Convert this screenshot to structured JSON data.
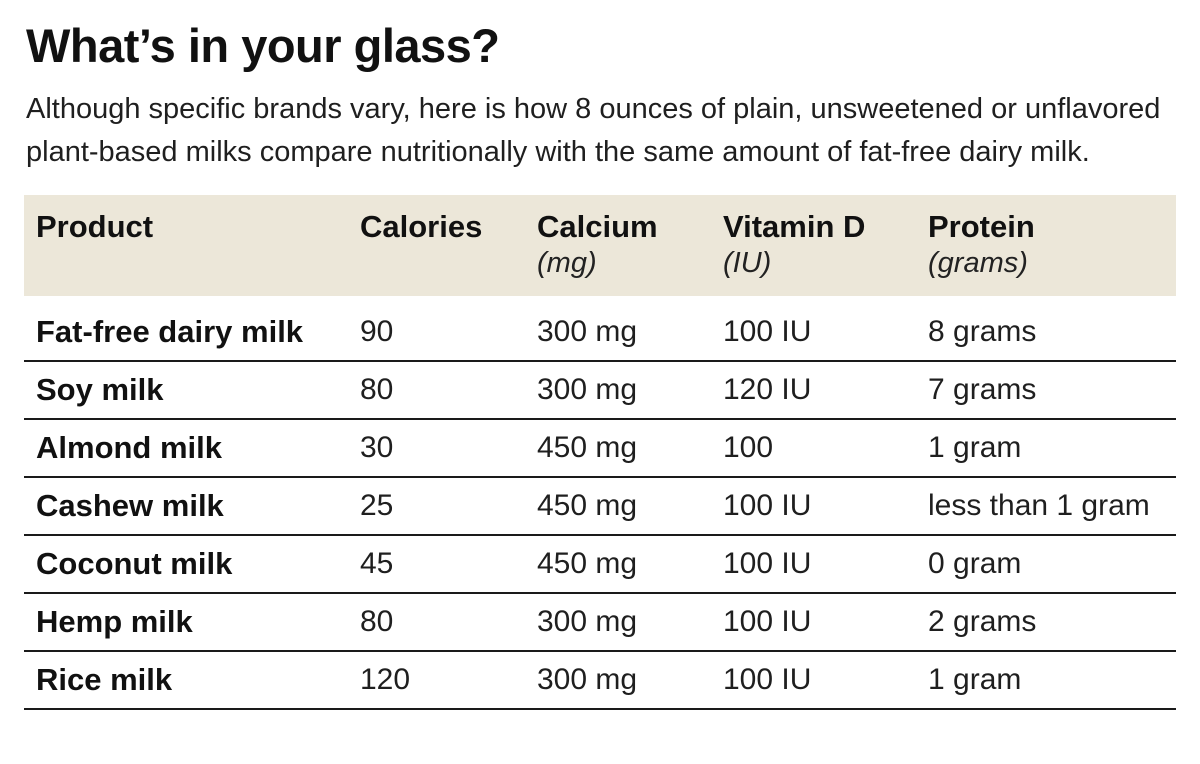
{
  "title": "What’s in your glass?",
  "intro": "Although specific brands vary, here is how 8 ounces of plain, unsweetened or unflavored plant-based milks compare nutritionally with the same amount of fat-free dairy milk.",
  "colors": {
    "header_background": "#ece7d9",
    "text": "#1a1a1a",
    "row_divider": "#1a1a1a"
  },
  "table": {
    "columns": [
      {
        "label": "Product",
        "unit": ""
      },
      {
        "label": "Calories",
        "unit": ""
      },
      {
        "label": "Calcium",
        "unit": "(mg)"
      },
      {
        "label": "Vitamin D",
        "unit": "(IU)"
      },
      {
        "label": "Protein",
        "unit": "(grams)"
      }
    ],
    "rows": [
      {
        "product": "Fat-free dairy milk",
        "calories": "90",
        "calcium": "300 mg",
        "vitamin_d": "100 IU",
        "protein": "8 grams"
      },
      {
        "product": "Soy milk",
        "calories": "80",
        "calcium": "300 mg",
        "vitamin_d": "120 IU",
        "protein": "7 grams"
      },
      {
        "product": "Almond milk",
        "calories": "30",
        "calcium": "450 mg",
        "vitamin_d": "100",
        "protein": "1 gram"
      },
      {
        "product": "Cashew milk",
        "calories": "25",
        "calcium": "450 mg",
        "vitamin_d": "100 IU",
        "protein": "less than 1 gram"
      },
      {
        "product": "Coconut milk",
        "calories": "45",
        "calcium": "450 mg",
        "vitamin_d": "100 IU",
        "protein": "0 gram"
      },
      {
        "product": "Hemp milk",
        "calories": "80",
        "calcium": "300 mg",
        "vitamin_d": "100 IU",
        "protein": "2 grams"
      },
      {
        "product": "Rice milk",
        "calories": "120",
        "calcium": "300 mg",
        "vitamin_d": "100 IU",
        "protein": "1 gram"
      }
    ]
  },
  "chart_data": {
    "type": "table",
    "title": "What’s in your glass?",
    "subtitle": "Although specific brands vary, here is how 8 ounces of plain, unsweetened or unflavored plant-based milks compare nutritionally with the same amount of fat-free dairy milk.",
    "columns": [
      "Product",
      "Calories",
      "Calcium (mg)",
      "Vitamin D (IU)",
      "Protein (grams)"
    ],
    "rows": [
      [
        "Fat-free dairy milk",
        "90",
        "300 mg",
        "100 IU",
        "8 grams"
      ],
      [
        "Soy milk",
        "80",
        "300 mg",
        "120 IU",
        "7 grams"
      ],
      [
        "Almond milk",
        "30",
        "450 mg",
        "100",
        "1 gram"
      ],
      [
        "Cashew milk",
        "25",
        "450 mg",
        "100 IU",
        "less than 1 gram"
      ],
      [
        "Coconut milk",
        "45",
        "450 mg",
        "100 IU",
        "0 gram"
      ],
      [
        "Hemp milk",
        "80",
        "300 mg",
        "100 IU",
        "2 grams"
      ],
      [
        "Rice milk",
        "120",
        "300 mg",
        "100 IU",
        "1 gram"
      ]
    ]
  }
}
